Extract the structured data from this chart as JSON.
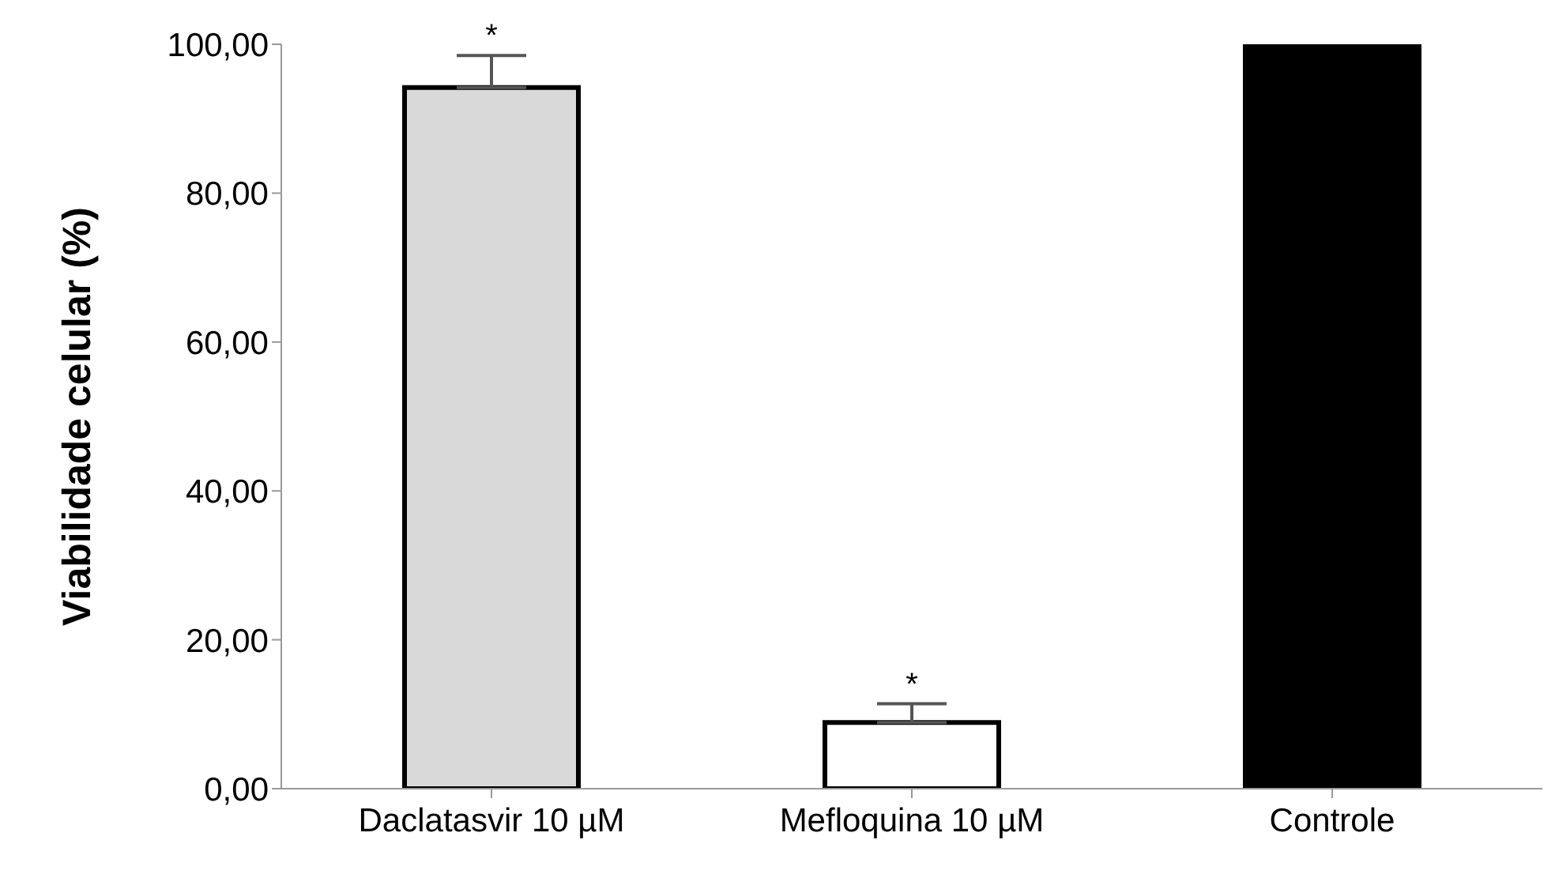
{
  "chart_data": {
    "type": "bar",
    "ylabel": "Viabilidade celular  (%)",
    "categories": [
      "Daclatasvir 10 µM",
      "Mefloquina 10 µM",
      "Controle"
    ],
    "values": [
      94.2,
      8.9,
      100
    ],
    "colors": [
      "#d9d9d9",
      "#ffffff",
      "#000000"
    ],
    "errors": [
      [
        94.2,
        98.5
      ],
      [
        8.9,
        11.4
      ],
      null
    ],
    "ylim": [
      0,
      100
    ],
    "yticks": [
      {
        "value": 0,
        "label": "0,00"
      },
      {
        "value": 20,
        "label": "20,00"
      },
      {
        "value": 40,
        "label": "40,00"
      },
      {
        "value": 60,
        "label": "60,00"
      },
      {
        "value": 80,
        "label": "80,00"
      },
      {
        "value": 100,
        "label": "100,00"
      }
    ],
    "annotations": [
      {
        "text": "*",
        "x": "Daclatasvir 10 µM",
        "y": 98.5
      },
      {
        "text": "*",
        "x": "Mefloquina 10 µM",
        "y": 11.4
      }
    ],
    "grid": false,
    "legend": false
  }
}
